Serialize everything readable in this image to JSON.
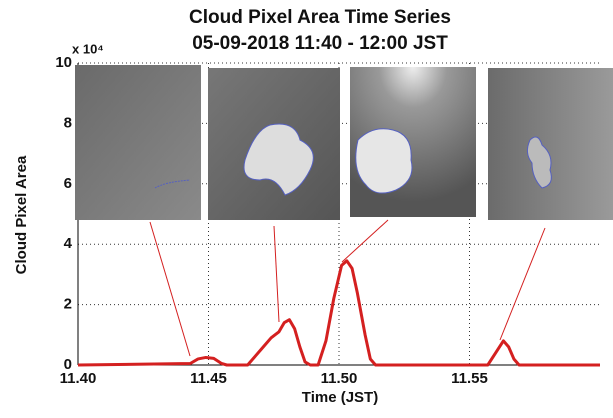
{
  "chart_data": {
    "type": "line",
    "title": "Cloud Pixel Area Time Series",
    "subtitle": "05-09-2018 11:40 - 12:00 JST",
    "x_label": "Time (JST)",
    "y_label": "Cloud Pixel Area",
    "y_scale_label": "x 10⁴",
    "x": [
      11.4,
      11.443,
      11.446,
      11.449,
      11.452,
      11.455,
      11.457,
      11.465,
      11.468,
      11.471,
      11.474,
      11.477,
      11.479,
      11.481,
      11.483,
      11.485,
      11.487,
      11.489,
      11.492,
      11.495,
      11.498,
      11.501,
      11.503,
      11.505,
      11.507,
      11.51,
      11.512,
      11.514,
      11.557,
      11.56,
      11.563,
      11.565,
      11.567,
      11.569,
      11.6
    ],
    "values": [
      0,
      0.05,
      0.2,
      0.25,
      0.22,
      0.05,
      0,
      0,
      0.3,
      0.6,
      0.9,
      1.1,
      1.4,
      1.5,
      1.2,
      0.6,
      0.1,
      0,
      0,
      0.8,
      2.2,
      3.3,
      3.45,
      3.2,
      2.4,
      1.0,
      0.2,
      0,
      0,
      0.4,
      0.8,
      0.6,
      0.2,
      0,
      0
    ],
    "color": "#d42020",
    "xlim": [
      11.4,
      11.6
    ],
    "xticks": [
      {
        "value": 11.4,
        "label": "11.40"
      },
      11.45,
      {
        "value": 11.5,
        "label": "11.50"
      },
      11.55
    ],
    "ylim": [
      0,
      10
    ],
    "yticks": [
      0,
      2,
      4,
      6,
      8,
      10
    ],
    "grid": true
  }
}
